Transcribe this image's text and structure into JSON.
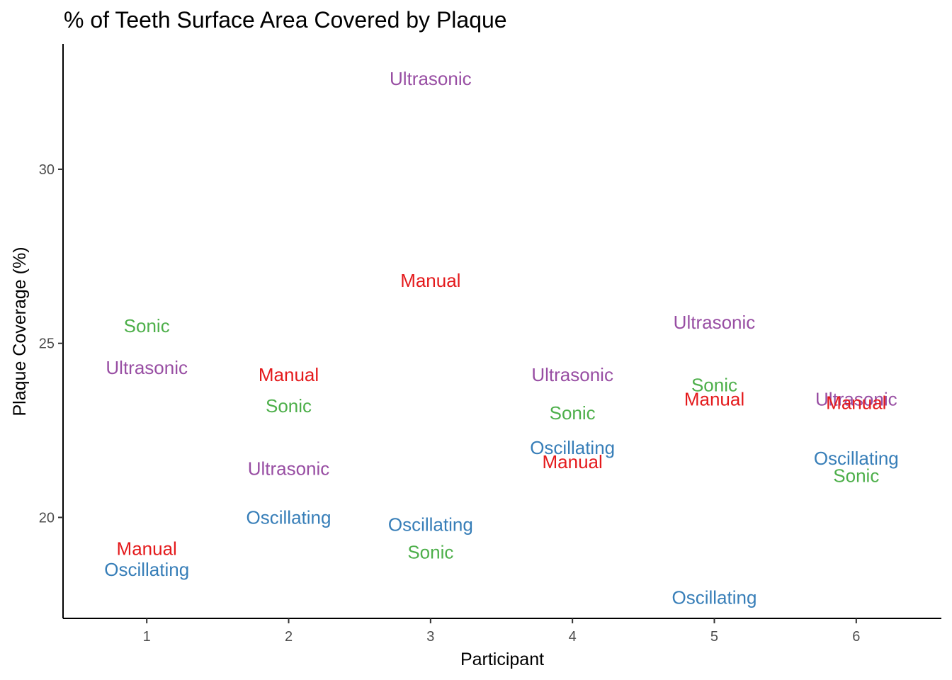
{
  "chart_data": {
    "type": "scatter",
    "title": "% of Teeth Surface Area Covered by Plaque",
    "xlabel": "Participant",
    "ylabel": "Plaque Coverage (%)",
    "xlim": [
      0.41,
      6.6
    ],
    "ylim": [
      17.1,
      33.6
    ],
    "x_ticks": [
      1,
      2,
      3,
      4,
      5,
      6
    ],
    "y_ticks": [
      20,
      25,
      30
    ],
    "grid": false,
    "legend": "none",
    "colors": {
      "Manual": "#e41a1c",
      "Oscillating": "#377eb8",
      "Sonic": "#4daf4a",
      "Ultrasonic": "#984ea3"
    },
    "points": [
      {
        "x": 1,
        "y": 25.5,
        "label": "Sonic"
      },
      {
        "x": 1,
        "y": 24.3,
        "label": "Ultrasonic"
      },
      {
        "x": 1,
        "y": 19.1,
        "label": "Manual"
      },
      {
        "x": 1,
        "y": 18.5,
        "label": "Oscillating"
      },
      {
        "x": 2,
        "y": 24.1,
        "label": "Manual"
      },
      {
        "x": 2,
        "y": 23.2,
        "label": "Sonic"
      },
      {
        "x": 2,
        "y": 21.4,
        "label": "Ultrasonic"
      },
      {
        "x": 2,
        "y": 20.0,
        "label": "Oscillating"
      },
      {
        "x": 3,
        "y": 32.6,
        "label": "Ultrasonic"
      },
      {
        "x": 3,
        "y": 26.8,
        "label": "Manual"
      },
      {
        "x": 3,
        "y": 19.8,
        "label": "Oscillating"
      },
      {
        "x": 3,
        "y": 19.0,
        "label": "Sonic"
      },
      {
        "x": 4,
        "y": 24.1,
        "label": "Ultrasonic"
      },
      {
        "x": 4,
        "y": 23.0,
        "label": "Sonic"
      },
      {
        "x": 4,
        "y": 22.0,
        "label": "Oscillating"
      },
      {
        "x": 4,
        "y": 21.6,
        "label": "Manual"
      },
      {
        "x": 5,
        "y": 25.6,
        "label": "Ultrasonic"
      },
      {
        "x": 5,
        "y": 23.8,
        "label": "Sonic"
      },
      {
        "x": 5,
        "y": 23.4,
        "label": "Manual"
      },
      {
        "x": 5,
        "y": 17.7,
        "label": "Oscillating"
      },
      {
        "x": 6,
        "y": 23.4,
        "label": "Ultrasonic"
      },
      {
        "x": 6,
        "y": 23.3,
        "label": "Manual"
      },
      {
        "x": 6,
        "y": 21.7,
        "label": "Oscillating"
      },
      {
        "x": 6,
        "y": 21.2,
        "label": "Sonic"
      }
    ]
  }
}
